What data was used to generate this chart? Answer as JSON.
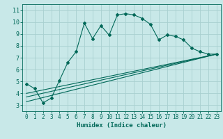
{
  "title": "",
  "xlabel": "Humidex (Indice chaleur)",
  "ylabel": "",
  "bg_color": "#c8e8e8",
  "grid_color": "#a8d0d0",
  "line_color": "#006858",
  "xlim": [
    -0.5,
    23.5
  ],
  "ylim": [
    2.5,
    11.5
  ],
  "xticks": [
    0,
    1,
    2,
    3,
    4,
    5,
    6,
    7,
    8,
    9,
    10,
    11,
    12,
    13,
    14,
    15,
    16,
    17,
    18,
    19,
    20,
    21,
    22,
    23
  ],
  "yticks": [
    3,
    4,
    5,
    6,
    7,
    8,
    9,
    10,
    11
  ],
  "line1_x": [
    0,
    1,
    2,
    3,
    4,
    5,
    6,
    7,
    8,
    9,
    10,
    11,
    12,
    13,
    14,
    15,
    16,
    17,
    18,
    19,
    20,
    21,
    22,
    23
  ],
  "line1_y": [
    4.8,
    4.4,
    3.2,
    3.6,
    5.1,
    6.6,
    7.5,
    9.9,
    8.6,
    9.7,
    8.9,
    10.6,
    10.7,
    10.6,
    10.3,
    9.8,
    8.5,
    8.9,
    8.8,
    8.5,
    7.8,
    7.5,
    7.3,
    7.3
  ],
  "line2_x": [
    0,
    23
  ],
  "line2_y": [
    3.7,
    7.3
  ],
  "line3_x": [
    0,
    23
  ],
  "line3_y": [
    4.0,
    7.3
  ],
  "line4_x": [
    0,
    23
  ],
  "line4_y": [
    3.3,
    7.3
  ],
  "tick_fontsize": 5.5,
  "xlabel_fontsize": 6.5,
  "lw": 0.8,
  "ms": 2.0
}
